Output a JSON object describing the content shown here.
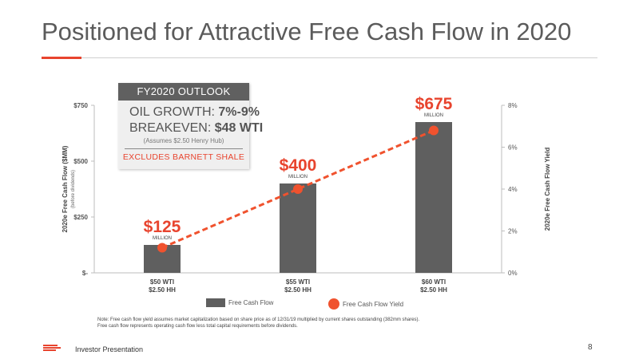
{
  "slide": {
    "title": "Positioned for Attractive Free Cash Flow in 2020",
    "footer_label": "Investor Presentation",
    "page_number": "8",
    "accent_color": "#e8442e"
  },
  "outlook": {
    "header": "FY2020 OUTLOOK",
    "oil_growth_label": "OIL GROWTH: ",
    "oil_growth_value": "7%-9%",
    "breakeven_label": "BREAKEVEN: ",
    "breakeven_value": "$48 WTI",
    "assumption": "(Assumes $2.50 Henry Hub)",
    "excludes": "EXCLUDES BARNETT SHALE"
  },
  "legend": {
    "bar_label": "Free Cash Flow",
    "line_label": "Free Cash Flow Yield"
  },
  "footnote": {
    "line1": "Note: Free cash flow yield assumes market capitalization based on share price as of 12/31/19 multiplied by current shares outstanding (382mm shares).",
    "line2": "Free cash flow represents operating cash flow less total capital requirements before dividends."
  },
  "chart_data": {
    "type": "bar",
    "categories": [
      [
        "$50 WTI",
        "$2.50 HH"
      ],
      [
        "$55 WTI",
        "$2.50 HH"
      ],
      [
        "$60 WTI",
        "$2.50 HH"
      ]
    ],
    "series": [
      {
        "name": "Free Cash Flow",
        "type": "bar",
        "axis": "left",
        "values": [
          125,
          400,
          675
        ],
        "color": "#5f5f5f"
      },
      {
        "name": "Free Cash Flow Yield",
        "type": "line",
        "axis": "right",
        "values": [
          1.2,
          4.0,
          6.8
        ],
        "color": "#f0522e",
        "style": "dashed"
      }
    ],
    "data_labels": [
      "$125",
      "$400",
      "$675"
    ],
    "data_label_unit": "MILLION",
    "ylabel_left": "2020e Free Cash Flow ($MM)",
    "ylabel_left_sub": "(before dividends)",
    "ylabel_right": "2020e Free Cash Flow Yield",
    "ylim_left": [
      0,
      750
    ],
    "ylim_right": [
      0,
      8
    ],
    "yticks_left": [
      "$-",
      "$250",
      "$500",
      "$750"
    ],
    "yticks_right": [
      "0%",
      "2%",
      "4%",
      "6%",
      "8%"
    ],
    "grid": false
  }
}
